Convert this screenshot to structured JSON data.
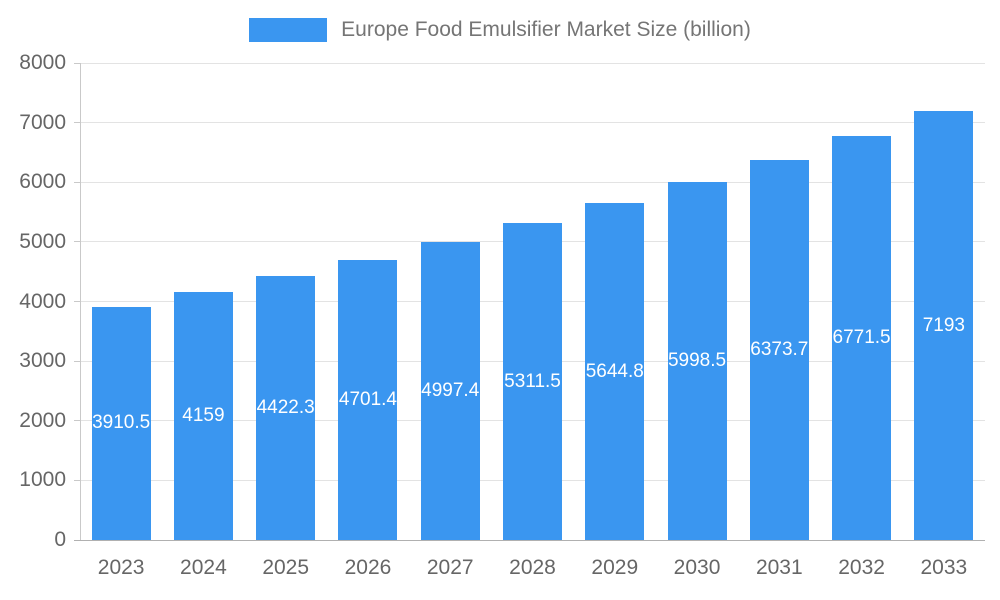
{
  "chart_data": {
    "type": "bar",
    "title": "Europe Food Emulsifier Market Size (billion)",
    "categories": [
      "2023",
      "2024",
      "2025",
      "2026",
      "2027",
      "2028",
      "2029",
      "2030",
      "2031",
      "2032",
      "2033"
    ],
    "values": [
      3910.5,
      4159,
      4422.3,
      4701.4,
      4997.4,
      5311.5,
      5644.8,
      5998.5,
      6373.7,
      6771.5,
      7193
    ],
    "value_labels": [
      "3910.5",
      "4159",
      "4422.3",
      "4701.4",
      "4997.4",
      "5311.5",
      "5644.8",
      "5998.5",
      "6373.7",
      "6771.5",
      "7193"
    ],
    "xlabel": "",
    "ylabel": "",
    "ylim": [
      0,
      8000
    ],
    "y_ticks": [
      0,
      1000,
      2000,
      3000,
      4000,
      5000,
      6000,
      7000,
      8000
    ],
    "y_tick_labels": [
      "0",
      "1000",
      "2000",
      "3000",
      "4000",
      "5000",
      "6000",
      "7000",
      "8000"
    ],
    "grid": true,
    "legend_position": "top",
    "bar_color": "#3a96f0",
    "value_label_color": "#ffffff",
    "axis_text_color": "#666666",
    "title_color": "#757575",
    "gridline_color": "#e3e3e3"
  }
}
